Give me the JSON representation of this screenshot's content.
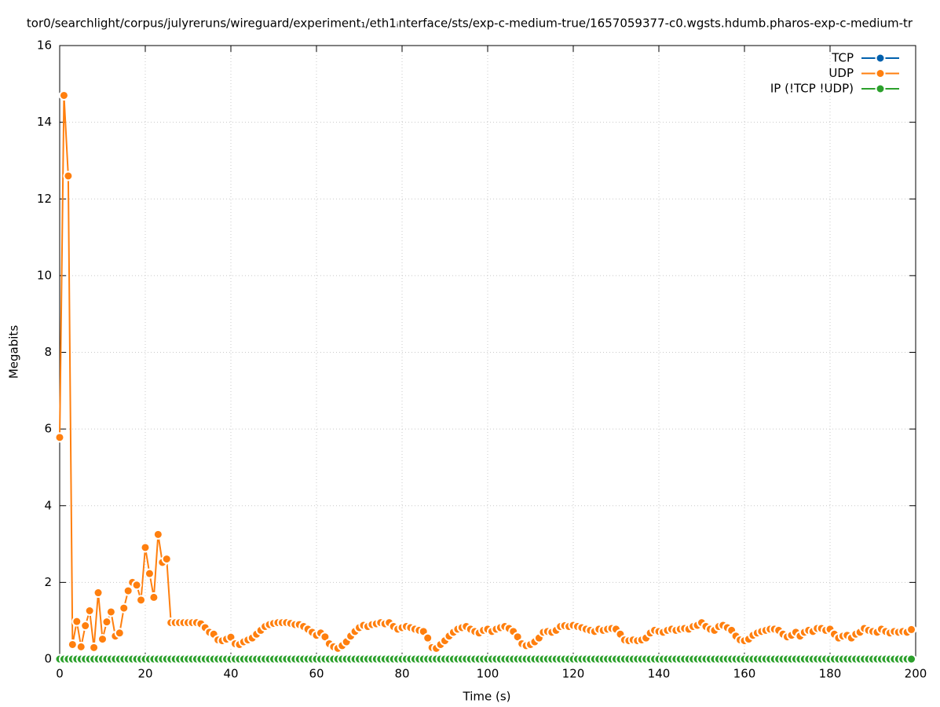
{
  "chart_data": {
    "type": "line",
    "title": "tor0/searchlight/corpus/julyreruns/wireguard/experiment₁/eth1ᵢnterface/sts/exp-c-medium-true/1657059377-c0.wgsts.hdumb.pharos-exp-c-medium-tr",
    "x_label": "Time (s)",
    "y_label": "Megabits",
    "xlim": [
      0,
      200
    ],
    "ylim": [
      0,
      16
    ],
    "xticks": [
      0,
      20,
      40,
      60,
      80,
      100,
      120,
      140,
      160,
      180,
      200
    ],
    "yticks": [
      0,
      2,
      4,
      6,
      8,
      10,
      12,
      14,
      16
    ],
    "grid": true,
    "legend": "top-right",
    "x": [
      0,
      1,
      2,
      3,
      4,
      5,
      6,
      7,
      8,
      9,
      10,
      11,
      12,
      13,
      14,
      15,
      16,
      17,
      18,
      19,
      20,
      21,
      22,
      23,
      24,
      25,
      26,
      27,
      28,
      29,
      30,
      31,
      32,
      33,
      34,
      35,
      36,
      37,
      38,
      39,
      40,
      41,
      42,
      43,
      44,
      45,
      46,
      47,
      48,
      49,
      50,
      51,
      52,
      53,
      54,
      55,
      56,
      57,
      58,
      59,
      60,
      61,
      62,
      63,
      64,
      65,
      66,
      67,
      68,
      69,
      70,
      71,
      72,
      73,
      74,
      75,
      76,
      77,
      78,
      79,
      80,
      81,
      82,
      83,
      84,
      85,
      86,
      87,
      88,
      89,
      90,
      91,
      92,
      93,
      94,
      95,
      96,
      97,
      98,
      99,
      100,
      101,
      102,
      103,
      104,
      105,
      106,
      107,
      108,
      109,
      110,
      111,
      112,
      113,
      114,
      115,
      116,
      117,
      118,
      119,
      120,
      121,
      122,
      123,
      124,
      125,
      126,
      127,
      128,
      129,
      130,
      131,
      132,
      133,
      134,
      135,
      136,
      137,
      138,
      139,
      140,
      141,
      142,
      143,
      144,
      145,
      146,
      147,
      148,
      149,
      150,
      151,
      152,
      153,
      154,
      155,
      156,
      157,
      158,
      159,
      160,
      161,
      162,
      163,
      164,
      165,
      166,
      167,
      168,
      169,
      170,
      171,
      172,
      173,
      174,
      175,
      176,
      177,
      178,
      179,
      180,
      181,
      182,
      183,
      184,
      185,
      186,
      187,
      188,
      189,
      190,
      191,
      192,
      193,
      194,
      195,
      196,
      197,
      198,
      199
    ],
    "series": [
      {
        "name": "TCP",
        "color": "#0060ad",
        "values": [
          0,
          0,
          0,
          0,
          0,
          0,
          0,
          0,
          0,
          0,
          0,
          0,
          0,
          0,
          0,
          0,
          0,
          0,
          0,
          0,
          0,
          0,
          0,
          0,
          0,
          0,
          0,
          0,
          0,
          0,
          0,
          0,
          0,
          0,
          0,
          0,
          0,
          0,
          0,
          0,
          0,
          0,
          0,
          0,
          0,
          0,
          0,
          0,
          0,
          0,
          0,
          0,
          0,
          0,
          0,
          0,
          0,
          0,
          0,
          0,
          0,
          0,
          0,
          0,
          0,
          0,
          0,
          0,
          0,
          0,
          0,
          0,
          0,
          0,
          0,
          0,
          0,
          0,
          0,
          0,
          0,
          0,
          0,
          0,
          0,
          0,
          0,
          0,
          0,
          0,
          0,
          0,
          0,
          0,
          0,
          0,
          0,
          0,
          0,
          0,
          0,
          0,
          0,
          0,
          0,
          0,
          0,
          0,
          0,
          0,
          0,
          0,
          0,
          0,
          0,
          0,
          0,
          0,
          0,
          0,
          0,
          0,
          0,
          0,
          0,
          0,
          0,
          0,
          0,
          0,
          0,
          0,
          0,
          0,
          0,
          0,
          0,
          0,
          0,
          0,
          0,
          0,
          0,
          0,
          0,
          0,
          0,
          0,
          0,
          0,
          0,
          0,
          0,
          0,
          0,
          0,
          0,
          0,
          0,
          0,
          0,
          0,
          0,
          0,
          0,
          0,
          0,
          0,
          0,
          0,
          0,
          0,
          0,
          0,
          0,
          0,
          0,
          0,
          0,
          0,
          0,
          0,
          0,
          0,
          0,
          0,
          0,
          0,
          0,
          0,
          0,
          0,
          0,
          0,
          0,
          0,
          0,
          0,
          0,
          0
        ]
      },
      {
        "name": "UDP",
        "color": "#ff7f0e",
        "values": [
          5.78,
          14.7,
          12.6,
          0.38,
          0.98,
          0.32,
          0.87,
          1.26,
          0.3,
          1.73,
          0.52,
          0.97,
          1.23,
          0.6,
          0.68,
          1.33,
          1.78,
          2.0,
          1.93,
          1.54,
          2.91,
          2.23,
          1.61,
          3.25,
          2.52,
          2.61,
          0.95,
          0.95,
          0.95,
          0.95,
          0.95,
          0.95,
          0.95,
          0.92,
          0.82,
          0.7,
          0.65,
          0.5,
          0.48,
          0.52,
          0.57,
          0.4,
          0.38,
          0.45,
          0.5,
          0.55,
          0.65,
          0.75,
          0.85,
          0.9,
          0.93,
          0.95,
          0.95,
          0.95,
          0.93,
          0.9,
          0.9,
          0.85,
          0.78,
          0.7,
          0.62,
          0.68,
          0.58,
          0.4,
          0.32,
          0.28,
          0.35,
          0.45,
          0.6,
          0.72,
          0.82,
          0.88,
          0.85,
          0.9,
          0.92,
          0.95,
          0.92,
          0.95,
          0.85,
          0.78,
          0.82,
          0.85,
          0.82,
          0.78,
          0.75,
          0.72,
          0.55,
          0.3,
          0.28,
          0.38,
          0.48,
          0.6,
          0.7,
          0.78,
          0.82,
          0.85,
          0.78,
          0.72,
          0.68,
          0.75,
          0.78,
          0.72,
          0.78,
          0.82,
          0.85,
          0.8,
          0.72,
          0.58,
          0.4,
          0.35,
          0.38,
          0.45,
          0.55,
          0.7,
          0.72,
          0.7,
          0.75,
          0.85,
          0.87,
          0.85,
          0.88,
          0.85,
          0.82,
          0.78,
          0.75,
          0.72,
          0.78,
          0.75,
          0.78,
          0.8,
          0.78,
          0.65,
          0.5,
          0.48,
          0.5,
          0.48,
          0.5,
          0.55,
          0.68,
          0.75,
          0.72,
          0.7,
          0.75,
          0.78,
          0.75,
          0.78,
          0.8,
          0.78,
          0.85,
          0.88,
          0.95,
          0.85,
          0.78,
          0.75,
          0.85,
          0.88,
          0.82,
          0.75,
          0.6,
          0.5,
          0.48,
          0.52,
          0.62,
          0.68,
          0.72,
          0.75,
          0.78,
          0.78,
          0.75,
          0.65,
          0.58,
          0.62,
          0.7,
          0.6,
          0.7,
          0.75,
          0.72,
          0.8,
          0.8,
          0.75,
          0.78,
          0.65,
          0.55,
          0.6,
          0.62,
          0.55,
          0.65,
          0.7,
          0.8,
          0.75,
          0.72,
          0.7,
          0.78,
          0.72,
          0.68,
          0.72,
          0.7,
          0.72,
          0.7,
          0.77
        ]
      },
      {
        "name": "IP (!TCP  !UDP)",
        "color": "#2ca02c",
        "values": [
          0,
          0,
          0,
          0,
          0,
          0,
          0,
          0,
          0,
          0,
          0,
          0,
          0,
          0,
          0,
          0,
          0,
          0,
          0,
          0,
          0,
          0,
          0,
          0,
          0,
          0,
          0,
          0,
          0,
          0,
          0,
          0,
          0,
          0,
          0,
          0,
          0,
          0,
          0,
          0,
          0,
          0,
          0,
          0,
          0,
          0,
          0,
          0,
          0,
          0,
          0,
          0,
          0,
          0,
          0,
          0,
          0,
          0,
          0,
          0,
          0,
          0,
          0,
          0,
          0,
          0,
          0,
          0,
          0,
          0,
          0,
          0,
          0,
          0,
          0,
          0,
          0,
          0,
          0,
          0,
          0,
          0,
          0,
          0,
          0,
          0,
          0,
          0,
          0,
          0,
          0,
          0,
          0,
          0,
          0,
          0,
          0,
          0,
          0,
          0,
          0,
          0,
          0,
          0,
          0,
          0,
          0,
          0,
          0,
          0,
          0,
          0,
          0,
          0,
          0,
          0,
          0,
          0,
          0,
          0,
          0,
          0,
          0,
          0,
          0,
          0,
          0,
          0,
          0,
          0,
          0,
          0,
          0,
          0,
          0,
          0,
          0,
          0,
          0,
          0,
          0,
          0,
          0,
          0,
          0,
          0,
          0,
          0,
          0,
          0,
          0,
          0,
          0,
          0,
          0,
          0,
          0,
          0,
          0,
          0,
          0,
          0,
          0,
          0,
          0,
          0,
          0,
          0,
          0,
          0,
          0,
          0,
          0,
          0,
          0,
          0,
          0,
          0,
          0,
          0,
          0,
          0,
          0,
          0,
          0,
          0,
          0,
          0,
          0,
          0,
          0,
          0,
          0,
          0,
          0,
          0,
          0,
          0,
          0,
          0
        ]
      }
    ]
  }
}
